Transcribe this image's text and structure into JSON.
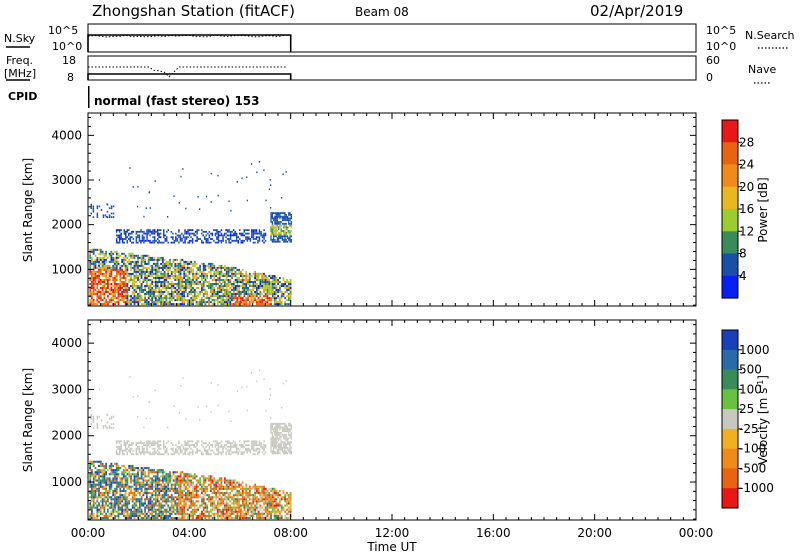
{
  "header": {
    "title": "Zhongshan Station (fitACF)",
    "beam": "Beam 08",
    "date": "02/Apr/2019"
  },
  "top_panels": {
    "nsky_label": "N.Sky",
    "nsky_ticks": [
      "10^5",
      "10^0"
    ],
    "nsky_right_ticks": [
      "10^5",
      "10^0"
    ],
    "nsearch_label": "N.Search",
    "freq_label": "Freq.",
    "freq_unit": "[MHz]",
    "freq_ticks": [
      "18",
      "8"
    ],
    "nave_ticks": [
      "60",
      "0"
    ],
    "nave_label": "Nave",
    "cpid_label": "CPID",
    "cpid_value": "normal (fast stereo) 153"
  },
  "colors": {
    "blue": "#0a1ef0",
    "dark_blue": "#1a4fa8",
    "mid_green": "#3a8a5a",
    "green": "#6ab040",
    "light_green": "#9ccc30",
    "yellow": "#e8b820",
    "orange": "#f08a18",
    "dark_orange": "#e86410",
    "red": "#e81818",
    "gray": "#c8c8c0"
  },
  "chart_data": [
    {
      "type": "heatmap",
      "name": "power",
      "ylabel": "Slant Range [km]",
      "ylim": [
        180,
        4500
      ],
      "yticks": [
        "4000",
        "3000",
        "2000",
        "1000"
      ],
      "xlim": [
        0,
        24
      ],
      "colorbar_label": "Power [dB]",
      "colorbar_ticks": [
        "28",
        "24",
        "20",
        "16",
        "12",
        "8",
        "4"
      ],
      "colorbar_colors": [
        "#e81818",
        "#e86410",
        "#f08a18",
        "#e8b820",
        "#9ccc30",
        "#3a8a5a",
        "#1a4fa8",
        "#0a1ef0"
      ]
    },
    {
      "type": "heatmap",
      "name": "velocity",
      "ylabel": "Slant Range [km]",
      "ylim": [
        180,
        4500
      ],
      "yticks": [
        "4000",
        "3000",
        "2000",
        "1000"
      ],
      "xlim": [
        0,
        24
      ],
      "colorbar_label": "Velocity [m s",
      "colorbar_label_sup": "-1",
      "colorbar_label_end": "]",
      "colorbar_ticks": [
        "1000",
        "500",
        "100",
        "25",
        "-25",
        "-100",
        "-500",
        "-1000"
      ],
      "colorbar_colors": [
        "#1a3fb8",
        "#2a6aa8",
        "#3a8a5a",
        "#6ac040",
        "#c8c8c0",
        "#f0b020",
        "#f08a18",
        "#e86410",
        "#e81818"
      ]
    }
  ],
  "xaxis": {
    "label": "Time UT",
    "ticks": [
      "00:00",
      "04:00",
      "08:00",
      "12:00",
      "16:00",
      "20:00",
      "00:00"
    ]
  },
  "data_end_hour": 8
}
